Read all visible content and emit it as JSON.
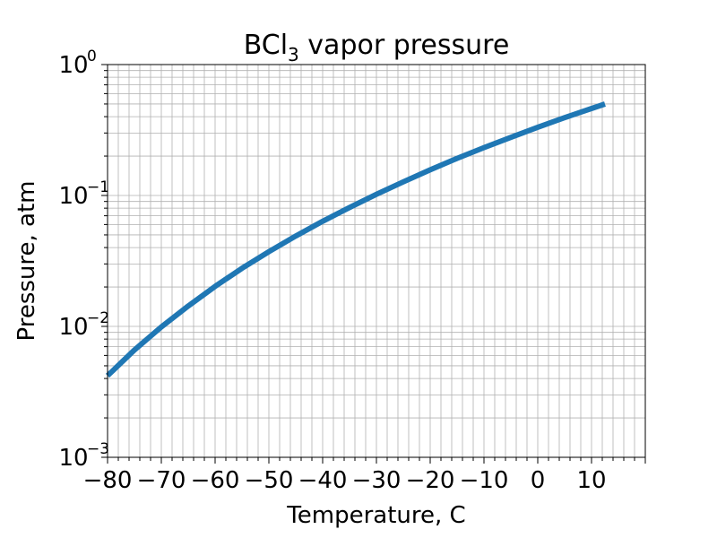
{
  "chart_data": {
    "type": "line",
    "title_main": "BCl",
    "title_sub": "3",
    "title_rest": " vapor pressure",
    "xlabel": "Temperature, C",
    "ylabel": "Pressure, atm",
    "xlim": [
      -80,
      20
    ],
    "ylim": [
      0.001,
      1
    ],
    "yscale": "log",
    "grid": true,
    "x_ticks": [
      -80,
      -70,
      -60,
      -50,
      -40,
      -30,
      -20,
      -10,
      0,
      10
    ],
    "x_tick_labels": [
      "−80",
      "−70",
      "−60",
      "−50",
      "−40",
      "−30",
      "−20",
      "−10",
      "0",
      "10"
    ],
    "y_ticks": [
      {
        "value": 0.001,
        "base": "10",
        "exp": "−3"
      },
      {
        "value": 0.01,
        "base": "10",
        "exp": "−2"
      },
      {
        "value": 0.1,
        "base": "10",
        "exp": "−1"
      },
      {
        "value": 1,
        "base": "10",
        "exp": "0"
      }
    ],
    "series": [
      {
        "color": "#1f77b4",
        "x": [
          -80,
          -75,
          -70,
          -65,
          -60,
          -55,
          -50,
          -45,
          -40,
          -35,
          -30,
          -25,
          -20,
          -15,
          -10,
          -5,
          0,
          5,
          10,
          12.5
        ],
        "y": [
          0.0042,
          0.0066,
          0.0099,
          0.0143,
          0.0202,
          0.0278,
          0.0372,
          0.049,
          0.0635,
          0.081,
          0.102,
          0.127,
          0.157,
          0.192,
          0.232,
          0.278,
          0.332,
          0.393,
          0.462,
          0.5
        ]
      }
    ]
  }
}
